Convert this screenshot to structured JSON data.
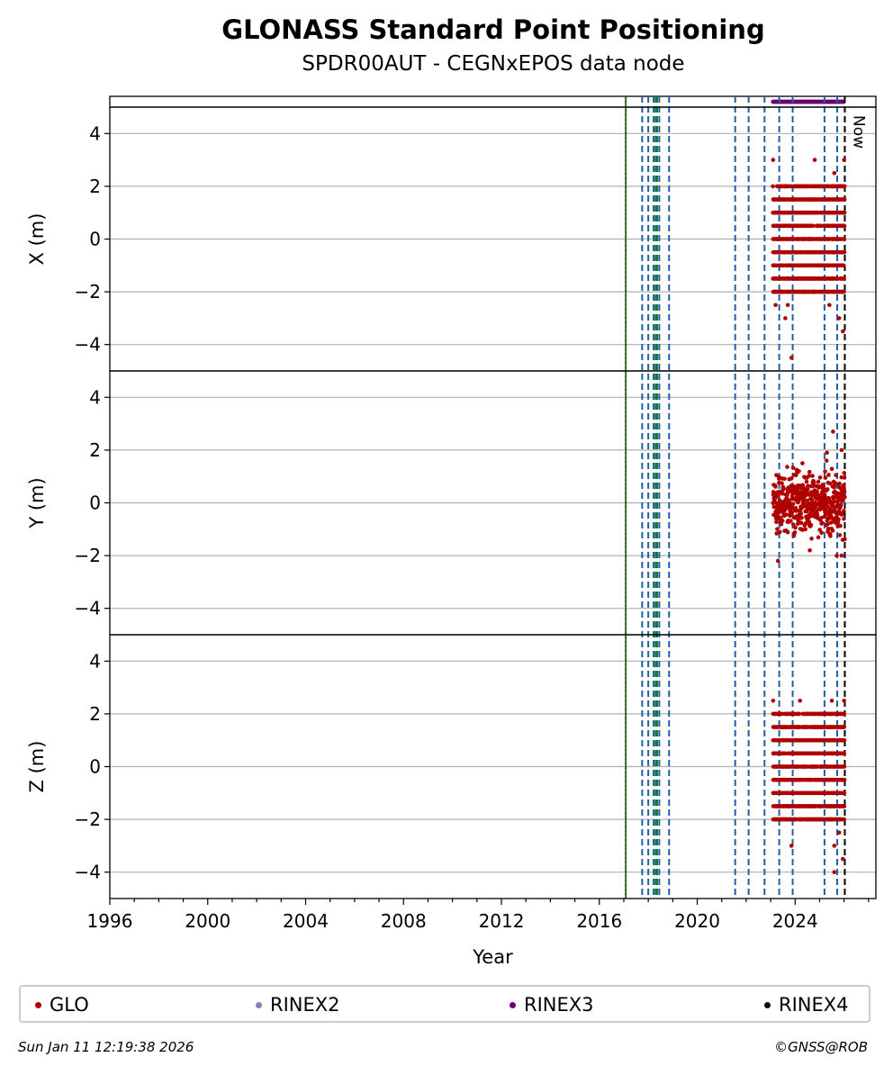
{
  "header": {
    "title": "GLONASS Standard Point Positioning",
    "subtitle": "SPDR00AUT - CEGNxEPOS data node"
  },
  "footer": {
    "timestamp": "Sun Jan 11 12:19:38 2026",
    "copyright": "©GNSS@ROB"
  },
  "legend": [
    {
      "label": "GLO",
      "color": "#b00000"
    },
    {
      "label": "RINEX2",
      "color": "#8080c0"
    },
    {
      "label": "RINEX3",
      "color": "#6a0070"
    },
    {
      "label": "RINEX4",
      "color": "#1a0010"
    }
  ],
  "chart_data": {
    "type": "scatter",
    "xlabel": "Year",
    "xlim": [
      1996,
      2027.3
    ],
    "xticks": [
      "1996",
      "2000",
      "2004",
      "2008",
      "2012",
      "2016",
      "2020",
      "2024"
    ],
    "grid": "horizontal",
    "now_label": "Now",
    "now_year": 2026.03,
    "green_line_year": 2017.08,
    "event_lines_blue": [
      2017.75,
      2018.0,
      2018.3,
      2018.45,
      2018.85,
      2021.55,
      2022.1,
      2022.75,
      2023.35,
      2023.9,
      2025.2,
      2025.72
    ],
    "event_lines_green": [
      2018.22,
      2018.36
    ],
    "rinex3_coverage": [
      [
        2023.1,
        2026.0
      ]
    ],
    "panels": [
      {
        "ylabel": "X (m)",
        "ylim": [
          -5,
          5
        ],
        "yticks": [
          "−4",
          "−2",
          "0",
          "2",
          "4"
        ],
        "series": [
          {
            "name": "GLO",
            "x_range": [
              2023.1,
              2026.03
            ],
            "step": 0.5,
            "core_range": [
              -2,
              2
            ],
            "outliers": [
              [
                2023.1,
                3.0
              ],
              [
                2024.8,
                3.0
              ],
              [
                2026.0,
                3.0
              ],
              [
                2025.6,
                2.5
              ],
              [
                2023.2,
                -2.5
              ],
              [
                2023.6,
                -3.0
              ],
              [
                2023.7,
                -2.5
              ],
              [
                2023.85,
                -4.5
              ],
              [
                2025.95,
                -3.5
              ],
              [
                2025.8,
                -3.0
              ],
              [
                2025.4,
                -2.5
              ]
            ]
          }
        ]
      },
      {
        "ylabel": "Y (m)",
        "ylim": [
          -5,
          5
        ],
        "yticks": [
          "−4",
          "−2",
          "0",
          "2",
          "4"
        ],
        "series": [
          {
            "name": "GLO",
            "x_range": [
              2023.1,
              2026.03
            ],
            "spread": 0.55,
            "outliers": [
              [
                2025.55,
                2.7
              ],
              [
                2025.9,
                2.0
              ],
              [
                2024.3,
                1.5
              ],
              [
                2023.3,
                -2.2
              ],
              [
                2025.7,
                -2.0
              ],
              [
                2025.9,
                -2.0
              ],
              [
                2024.6,
                -1.8
              ],
              [
                2025.3,
                1.9
              ]
            ]
          }
        ]
      },
      {
        "ylabel": "Z (m)",
        "ylim": [
          -5,
          5
        ],
        "yticks": [
          "−4",
          "−2",
          "0",
          "2",
          "4"
        ],
        "series": [
          {
            "name": "GLO",
            "x_range": [
              2023.1,
              2026.03
            ],
            "step": 0.5,
            "core_range": [
              -2,
              2
            ],
            "outliers": [
              [
                2023.1,
                2.5
              ],
              [
                2024.2,
                2.5
              ],
              [
                2025.5,
                2.5
              ],
              [
                2026.0,
                2.5
              ],
              [
                2023.85,
                -3.0
              ],
              [
                2025.6,
                -3.0
              ],
              [
                2025.95,
                -3.5
              ],
              [
                2025.6,
                -4.0
              ],
              [
                2025.8,
                -2.5
              ]
            ]
          }
        ]
      }
    ]
  }
}
